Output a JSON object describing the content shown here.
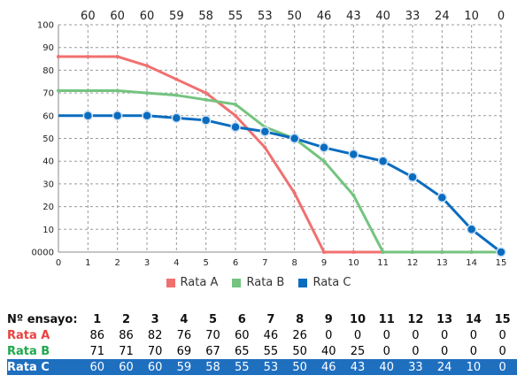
{
  "colors": {
    "rata_a": "#f07070",
    "rata_b": "#74c47f",
    "rata_c": "#0a6cbf"
  },
  "top_labels": [
    "60",
    "60",
    "60",
    "59",
    "58",
    "55",
    "53",
    "50",
    "46",
    "43",
    "40",
    "33",
    "24",
    "10",
    "0"
  ],
  "chart_data": {
    "type": "line",
    "x": [
      0,
      1,
      2,
      3,
      4,
      5,
      6,
      7,
      8,
      9,
      10,
      11,
      12,
      13,
      14,
      15
    ],
    "series": [
      {
        "name": "Rata A",
        "values": [
          86,
          86,
          86,
          82,
          76,
          70,
          60,
          46,
          26,
          0,
          0,
          0,
          0,
          0,
          0,
          0
        ]
      },
      {
        "name": "Rata B",
        "values": [
          71,
          71,
          71,
          70,
          69,
          67,
          65,
          55,
          50,
          40,
          25,
          0,
          0,
          0,
          0,
          0
        ]
      },
      {
        "name": "Rata C",
        "values": [
          60,
          60,
          60,
          60,
          59,
          58,
          55,
          53,
          50,
          46,
          43,
          40,
          33,
          24,
          10,
          0
        ]
      }
    ],
    "xlim": [
      0,
      15
    ],
    "ylim": [
      0,
      100
    ],
    "xticks": [
      "0",
      "1",
      "2",
      "3",
      "4",
      "5",
      "6",
      "7",
      "8",
      "9",
      "10",
      "11",
      "12",
      "13",
      "14",
      "15"
    ],
    "yticks": [
      "0000",
      "10",
      "20",
      "30",
      "40",
      "50",
      "60",
      "70",
      "80",
      "90",
      "100"
    ],
    "grid": true,
    "legend_position": "bottom"
  },
  "legend": [
    {
      "label": "Rata A"
    },
    {
      "label": "Rata B"
    },
    {
      "label": "Rata C"
    }
  ],
  "table": {
    "header_label": "Nº ensayo:",
    "trials": [
      "1",
      "2",
      "3",
      "4",
      "5",
      "6",
      "7",
      "8",
      "9",
      "10",
      "11",
      "12",
      "13",
      "14",
      "15"
    ],
    "rows": [
      {
        "label": "Rata A",
        "values": [
          "86",
          "86",
          "82",
          "76",
          "70",
          "60",
          "46",
          "26",
          "0",
          "0",
          "0",
          "0",
          "0",
          "0",
          "0"
        ]
      },
      {
        "label": "Rata B",
        "values": [
          "71",
          "71",
          "70",
          "69",
          "67",
          "65",
          "55",
          "50",
          "40",
          "25",
          "0",
          "0",
          "0",
          "0",
          "0"
        ]
      },
      {
        "label": "Rata C",
        "values": [
          "60",
          "60",
          "60",
          "59",
          "58",
          "55",
          "53",
          "50",
          "46",
          "43",
          "40",
          "33",
          "24",
          "10",
          "0"
        ]
      }
    ]
  }
}
